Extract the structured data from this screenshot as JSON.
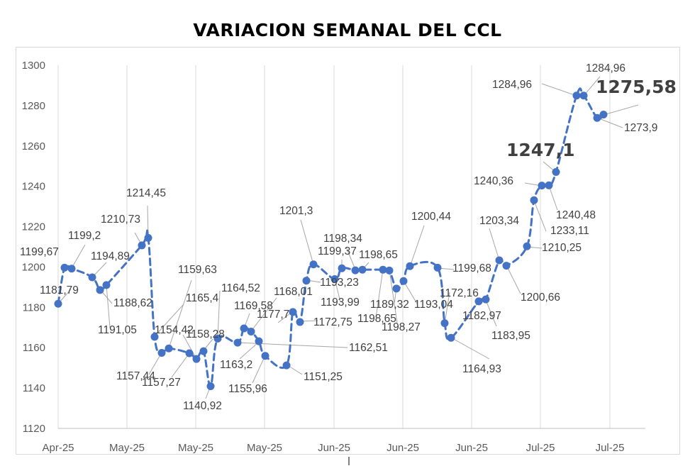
{
  "chart_data": {
    "type": "line",
    "title": "VARIACION SEMANAL DEL CCL",
    "xlabel": "",
    "ylabel": "",
    "ylim": [
      1120,
      1300
    ],
    "yticks": [
      1120,
      1140,
      1160,
      1180,
      1200,
      1220,
      1240,
      1260,
      1280,
      1300
    ],
    "xtick_labels": [
      "Apr-25",
      "May-25",
      "May-25",
      "May-25",
      "Jun-25",
      "Jun-25",
      "Jun-25",
      "Jul-25",
      "Jul-25"
    ],
    "grid": "vertical",
    "legend": "none",
    "line_color": "#4472c4",
    "line_style": "dashed",
    "series": [
      {
        "values": [
          1181.79,
          1199.67,
          1199.2,
          1194.89,
          1188.62,
          1191.05,
          1210.73,
          1214.45,
          1165.4,
          1157.44,
          1159.63,
          1157.27,
          1154.42,
          1158.28,
          1140.92,
          1164.52,
          1162.51,
          1169.58,
          1168.01,
          1163.2,
          1155.96,
          1151.25,
          1177.7,
          1172.75,
          1193.23,
          1201.3,
          1193.99,
          1199.37,
          1198.34,
          1198.65,
          1198.65,
          1198.27,
          1189.32,
          1193.04,
          1200.44,
          1199.68,
          1172.16,
          1164.93,
          1182.97,
          1183.95,
          1203.34,
          1200.66,
          1210.25,
          1233.11,
          1240.36,
          1240.48,
          1247.1,
          1284.96,
          1284.96,
          1273.9,
          1275.58
        ],
        "labels": [
          "1181,79",
          "1199,67",
          "1199,2",
          "1194,89",
          "1188,62",
          "1191,05",
          "1210,73",
          "1214,45",
          "1165,4",
          "1157,44",
          "1159,63",
          "1157,27",
          "1154,42",
          "1158,28",
          "1140,92",
          "1164,52",
          "1162,51",
          "1169,58",
          "1168,01",
          "1163,2",
          "1155,96",
          "1151,25",
          "1177,7",
          "1172,75",
          "1193,23",
          "1201,3",
          "1193,99",
          "1199,37",
          "1198,34",
          "1198,65",
          "1198,65",
          "1198,27",
          "1189,32",
          "1193,04",
          "1200,44",
          "1199,68",
          "1172,16",
          "1164,93",
          "1182,97",
          "1183,95",
          "1203,34",
          "1200,66",
          "1210,25",
          "1233,11",
          "1240,36",
          "1240,48",
          "1247,1",
          "1284,96",
          "1284,96",
          "1273,9",
          "1275,58"
        ]
      }
    ]
  }
}
